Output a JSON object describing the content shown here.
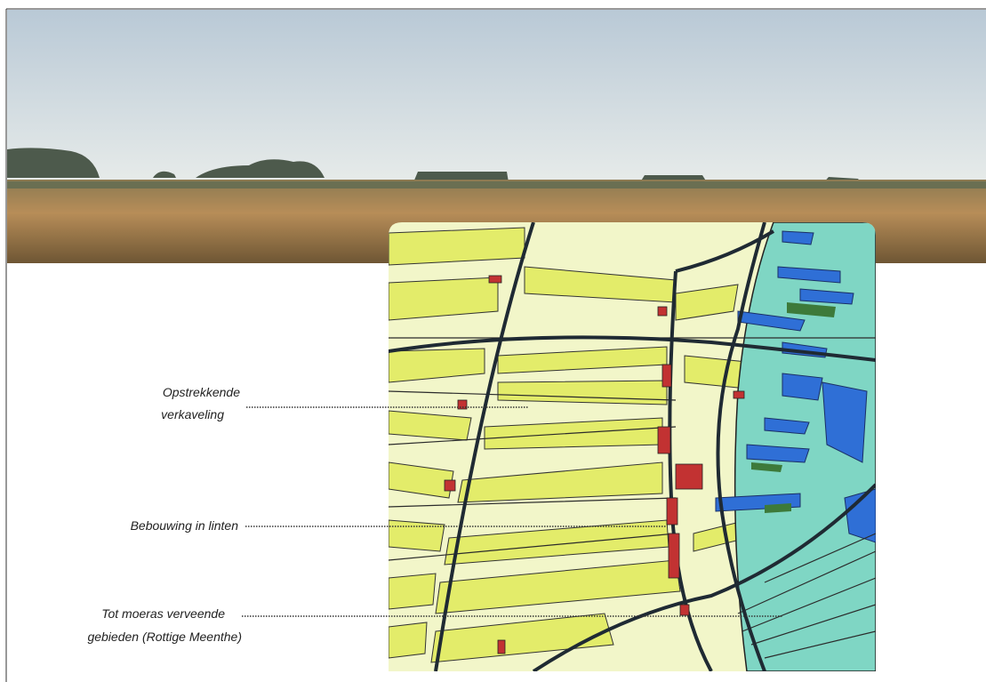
{
  "annotations": [
    {
      "lines": [
        "Opstrekkende",
        "verkaveling"
      ]
    },
    {
      "lines": [
        "Bebouwing in linten"
      ]
    },
    {
      "lines": [
        "Tot moeras verveende",
        "gebieden (Rottige Meenthe)"
      ]
    }
  ]
}
